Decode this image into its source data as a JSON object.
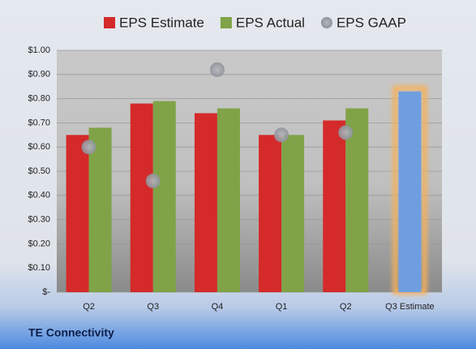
{
  "chart_data": {
    "type": "bar",
    "title": "TE Connectivity",
    "categories": [
      "Q2",
      "Q3",
      "Q4",
      "Q1",
      "Q2",
      "Q3 Estimate"
    ],
    "series": [
      {
        "name": "EPS Estimate",
        "color": "#d42a2a",
        "values": [
          0.65,
          0.78,
          0.74,
          0.65,
          0.71,
          0.83
        ]
      },
      {
        "name": "EPS Actual",
        "color": "#7fa346",
        "values": [
          0.68,
          0.79,
          0.76,
          0.65,
          0.76,
          null
        ]
      },
      {
        "name": "EPS GAAP",
        "color": "#a9adb3",
        "marker": "circle",
        "values": [
          0.6,
          0.46,
          0.92,
          0.65,
          0.66,
          null
        ]
      }
    ],
    "highlight": {
      "index": 5,
      "color": "#6f9ee0",
      "glow": "#f6b15a"
    },
    "ylim": [
      0,
      1
    ],
    "yticks": [
      {
        "value": 0,
        "label": "$-"
      },
      {
        "value": 0.1,
        "label": "$0.10"
      },
      {
        "value": 0.2,
        "label": "$0.20"
      },
      {
        "value": 0.3,
        "label": "$0.30"
      },
      {
        "value": 0.4,
        "label": "$0.40"
      },
      {
        "value": 0.5,
        "label": "$0.50"
      },
      {
        "value": 0.6,
        "label": "$0.60"
      },
      {
        "value": 0.7,
        "label": "$0.70"
      },
      {
        "value": 0.8,
        "label": "$0.80"
      },
      {
        "value": 0.9,
        "label": "$0.90"
      },
      {
        "value": 1,
        "label": "$1.00"
      }
    ],
    "grid": true
  }
}
